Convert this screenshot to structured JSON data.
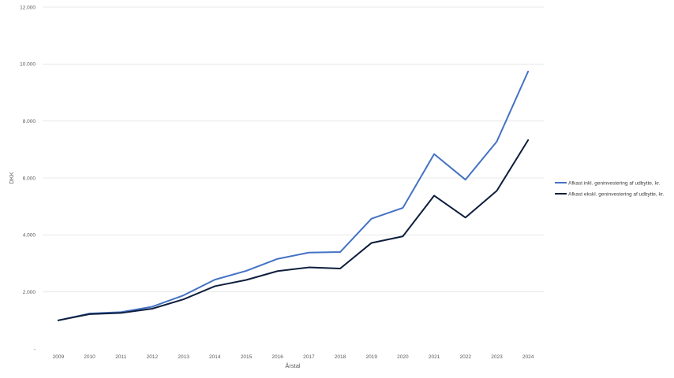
{
  "chart_data": {
    "type": "line",
    "title": "",
    "xlabel": "Årstal",
    "ylabel": "DKK",
    "categories": [
      "2009",
      "2010",
      "2011",
      "2012",
      "2013",
      "2014",
      "2015",
      "2016",
      "2017",
      "2018",
      "2019",
      "2020",
      "2021",
      "2022",
      "2023",
      "2024"
    ],
    "ylim": [
      0,
      12000
    ],
    "yticks": [
      0,
      2000,
      4000,
      6000,
      8000,
      10000,
      12000
    ],
    "ytick_labels": [
      "-",
      "2.000",
      "4.000",
      "6.000",
      "8.000",
      "10.000",
      "12.000"
    ],
    "grid": true,
    "legend_position": "right",
    "series": [
      {
        "name": "Afkast inkl. geninvestering af udbytte, kr.",
        "color": "#4472c4",
        "values": [
          1000,
          1240,
          1290,
          1480,
          1880,
          2430,
          2740,
          3160,
          3380,
          3400,
          4570,
          4950,
          6840,
          5940,
          7280,
          9740
        ]
      },
      {
        "name": "Afkast ekskl. geninvestering af udbytte, kr.",
        "color": "#0e1e3c",
        "values": [
          1000,
          1220,
          1260,
          1410,
          1740,
          2200,
          2420,
          2730,
          2860,
          2820,
          3720,
          3950,
          5380,
          4610,
          5550,
          7330
        ]
      }
    ]
  }
}
